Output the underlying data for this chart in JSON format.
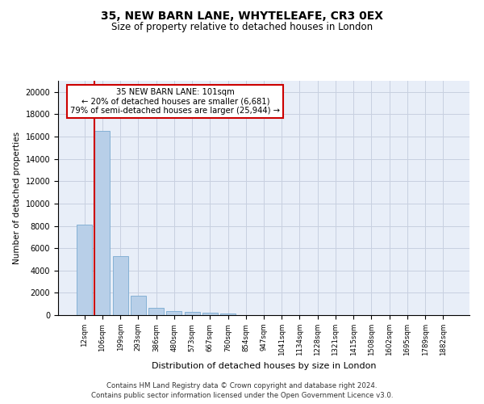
{
  "title_line1": "35, NEW BARN LANE, WHYTELEAFE, CR3 0EX",
  "title_line2": "Size of property relative to detached houses in London",
  "xlabel": "Distribution of detached houses by size in London",
  "ylabel": "Number of detached properties",
  "bar_values": [
    8100,
    16500,
    5300,
    1750,
    650,
    350,
    270,
    200,
    170,
    0,
    0,
    0,
    0,
    0,
    0,
    0,
    0,
    0,
    0,
    0,
    0
  ],
  "bar_labels": [
    "12sqm",
    "106sqm",
    "199sqm",
    "293sqm",
    "386sqm",
    "480sqm",
    "573sqm",
    "667sqm",
    "760sqm",
    "854sqm",
    "947sqm",
    "1041sqm",
    "1134sqm",
    "1228sqm",
    "1321sqm",
    "1415sqm",
    "1508sqm",
    "1602sqm",
    "1695sqm",
    "1789sqm",
    "1882sqm"
  ],
  "bar_color": "#b8cfe8",
  "bar_edge_color": "#7aaad0",
  "annotation_line1": "35 NEW BARN LANE: 101sqm",
  "annotation_line2": "← 20% of detached houses are smaller (6,681)",
  "annotation_line3": "79% of semi-detached houses are larger (25,944) →",
  "annotation_box_color": "#ffffff",
  "annotation_box_edge": "#cc0000",
  "red_line_x": 0.575,
  "ylim": [
    0,
    21000
  ],
  "yticks": [
    0,
    2000,
    4000,
    6000,
    8000,
    10000,
    12000,
    14000,
    16000,
    18000,
    20000
  ],
  "background_color": "#e8eef8",
  "grid_color": "#c8d0e0",
  "footer_line1": "Contains HM Land Registry data © Crown copyright and database right 2024.",
  "footer_line2": "Contains public sector information licensed under the Open Government Licence v3.0."
}
